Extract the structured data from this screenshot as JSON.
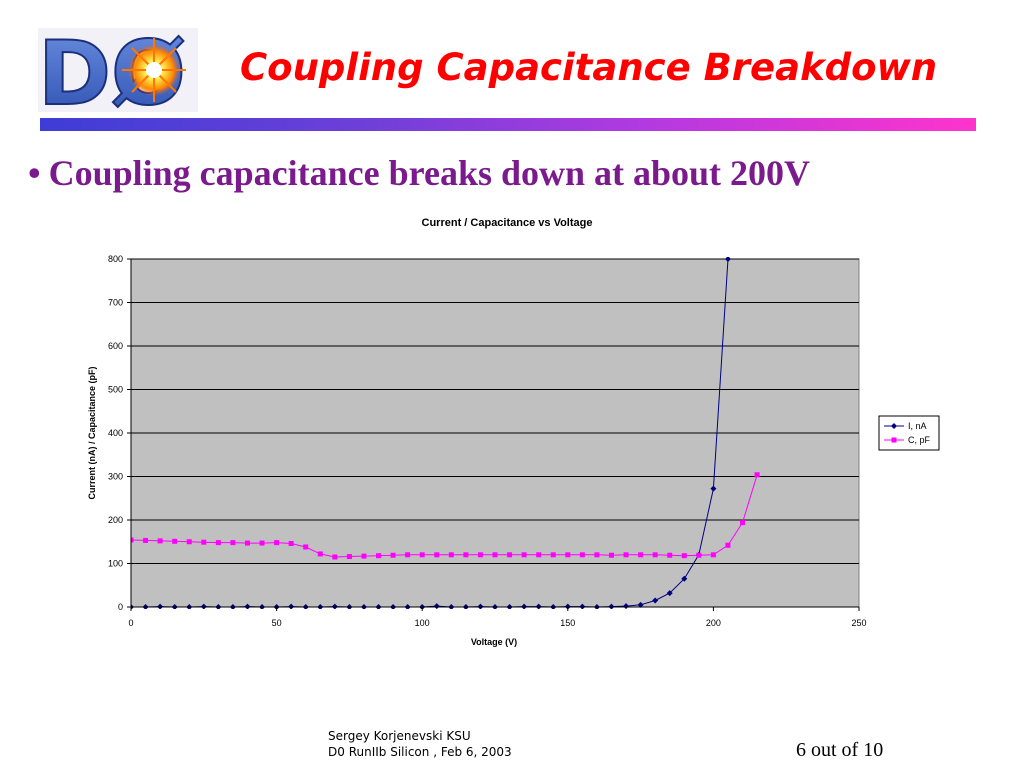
{
  "slide": {
    "title": "Coupling Capacitance Breakdown",
    "bullet": "Coupling capacitance breaks down at about 200V",
    "logo_text": "DØ",
    "colors": {
      "title": "#ff0000",
      "bullet": "#7a1a8c",
      "bar_start": "#3d3dd6",
      "bar_end": "#ff33cc"
    }
  },
  "footer": {
    "author": "Sergey Korjenevski KSU",
    "event": "D0 RunIIb Silicon ,  Feb 6, 2003",
    "page": "6 out of 10"
  },
  "chart_data": {
    "type": "line",
    "title": "Current / Capacitance vs Voltage",
    "xlabel": "Voltage (V)",
    "ylabel": "Current (nA)  / Capacitance (pF)",
    "xlim": [
      0,
      250
    ],
    "ylim": [
      0,
      800
    ],
    "xticks": [
      0,
      50,
      100,
      150,
      200,
      250
    ],
    "yticks": [
      0,
      100,
      200,
      300,
      400,
      500,
      600,
      700,
      800
    ],
    "grid": true,
    "plot_background": "#c0c0c0",
    "legend_position": "right",
    "series": [
      {
        "name": "I, nA",
        "color": "#000080",
        "marker": "diamond",
        "x": [
          0,
          5,
          10,
          15,
          20,
          25,
          30,
          35,
          40,
          45,
          50,
          55,
          60,
          65,
          70,
          75,
          80,
          85,
          90,
          95,
          100,
          105,
          110,
          115,
          120,
          125,
          130,
          135,
          140,
          145,
          150,
          155,
          160,
          165,
          170,
          175,
          180,
          185,
          190,
          195,
          200,
          205
        ],
        "y": [
          0,
          0,
          1,
          0,
          0,
          1,
          0,
          0,
          1,
          0,
          0,
          1,
          0,
          0,
          1,
          0,
          0,
          0,
          0,
          0,
          0,
          2,
          0,
          0,
          1,
          0,
          0,
          1,
          1,
          0,
          1,
          1,
          0,
          1,
          2,
          5,
          15,
          32,
          65,
          120,
          272,
          800
        ]
      },
      {
        "name": "C, pF",
        "color": "#ff00ff",
        "marker": "square",
        "x": [
          0,
          5,
          10,
          15,
          20,
          25,
          30,
          35,
          40,
          45,
          50,
          55,
          60,
          65,
          70,
          75,
          80,
          85,
          90,
          95,
          100,
          105,
          110,
          115,
          120,
          125,
          130,
          135,
          140,
          145,
          150,
          155,
          160,
          165,
          170,
          175,
          180,
          185,
          190,
          195,
          200,
          205,
          210,
          215
        ],
        "y": [
          154,
          153,
          152,
          151,
          150,
          149,
          148,
          148,
          147,
          147,
          148,
          146,
          138,
          122,
          115,
          116,
          117,
          118,
          119,
          120,
          120,
          120,
          120,
          120,
          120,
          120,
          120,
          120,
          120,
          120,
          120,
          120,
          120,
          119,
          120,
          120,
          120,
          119,
          118,
          119,
          120,
          142,
          194,
          304
        ]
      }
    ]
  }
}
